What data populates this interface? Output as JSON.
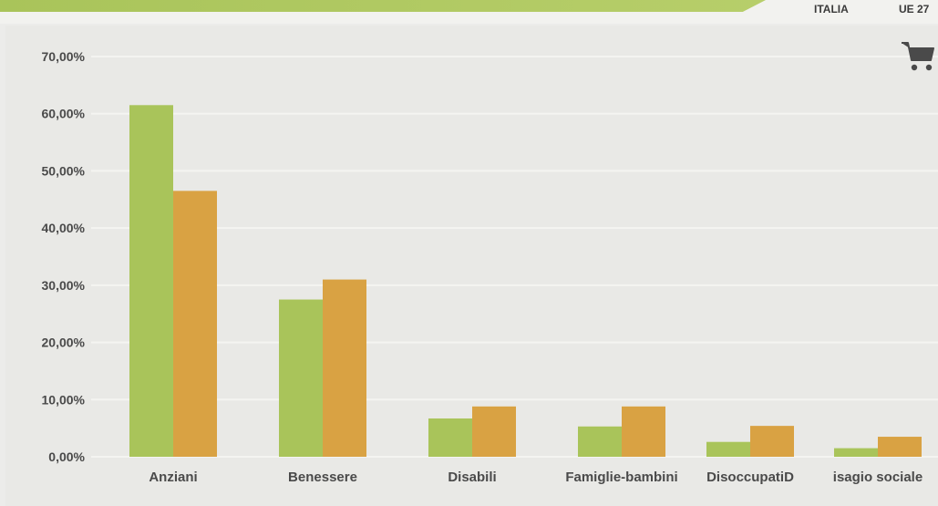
{
  "legend": {
    "italia_label": "ITALIA",
    "ue_label": "UE 27"
  },
  "icons": {
    "cart": "shopping-cart-icon"
  },
  "colors": {
    "italia": "#a9c45a",
    "ue27": "#d9a243",
    "banner": "#a9c45a",
    "grid": "#f4f4f1"
  },
  "chart_data": {
    "type": "bar",
    "title": "",
    "xlabel": "",
    "ylabel": "",
    "categories": [
      "Anziani",
      "Benessere",
      "Disabili",
      "Famiglie-bambini",
      "DisoccupatiD",
      "isagio sociale"
    ],
    "series": [
      {
        "name": "ITALIA",
        "values": [
          61.5,
          27.5,
          6.7,
          5.3,
          2.6,
          1.5
        ]
      },
      {
        "name": "UE 27",
        "values": [
          46.5,
          31.0,
          8.8,
          8.8,
          5.4,
          3.5
        ]
      }
    ],
    "ylim": [
      0,
      70
    ],
    "yticks": [
      "0,00%",
      "10,00%",
      "20,00%",
      "30,00%",
      "40,00%",
      "50,00%",
      "60,00%",
      "70,00%"
    ],
    "grid": true,
    "legend_position": "top-right"
  }
}
